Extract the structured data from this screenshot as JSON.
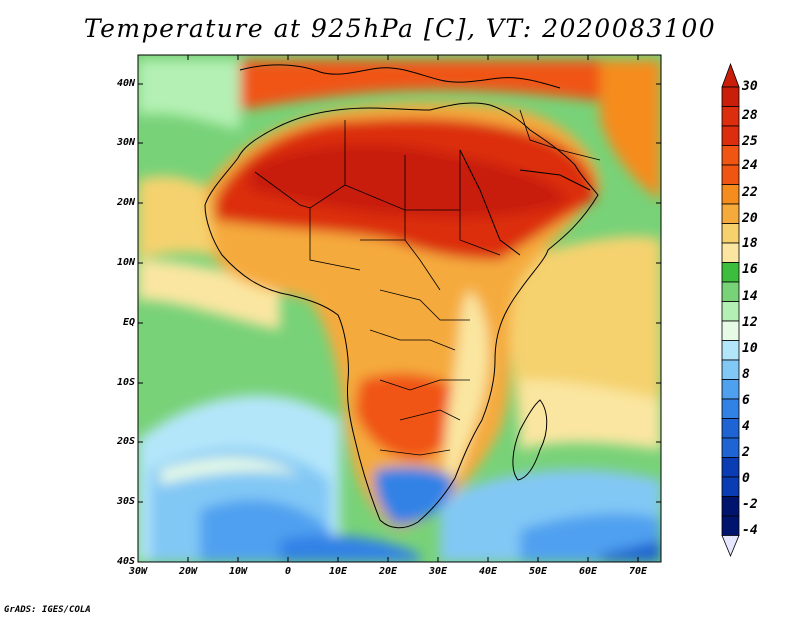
{
  "title": "Temperature at 925hPa [C], VT: 2020083100",
  "footer": "GrADS: IGES/COLA",
  "map": {
    "lat_labels": [
      "40N",
      "30N",
      "20N",
      "10N",
      "EQ",
      "10S",
      "20S",
      "30S",
      "40S"
    ],
    "lon_labels": [
      "30W",
      "20W",
      "10W",
      "0",
      "10E",
      "20E",
      "30E",
      "40E",
      "50E",
      "60E",
      "70E"
    ]
  },
  "colorbar": {
    "levels": [
      "30",
      "28",
      "25",
      "24",
      "22",
      "20",
      "18",
      "16",
      "14",
      "12",
      "10",
      "8",
      "6",
      "4",
      "2",
      "0",
      "-2",
      "-4"
    ],
    "colors": {
      "c_gt30": "#c81e0a",
      "c_28_30": "#dc2d0f",
      "c_25_28": "#f05514",
      "c_24_25": "#f58c1e",
      "c_22_24": "#f5aa3c",
      "c_20_22": "#f5d26e",
      "c_18_20": "#fae6a0",
      "c_16_18": "#3cbe3c",
      "c_14_16": "#78d278",
      "c_12_14": "#b4f0b4",
      "c_10_12": "#e6fae6",
      "c_8_10": "#b4e6fa",
      "c_6_8": "#82c8f5",
      "c_4_6": "#50a0f0",
      "c_2_4": "#3282e6",
      "c_0_2": "#1e64d2",
      "c_m2_0": "#0a3cb4",
      "c_m4_m2": "#00146e",
      "c_lt_m4": "#e6e6ff"
    }
  }
}
